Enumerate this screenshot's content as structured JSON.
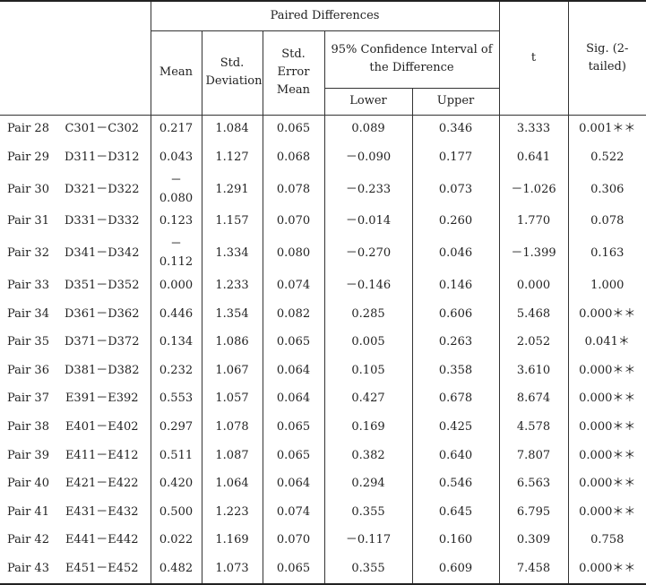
{
  "table": {
    "header": {
      "paired_differences": "Paired Differences",
      "mean": "Mean",
      "std_deviation": "Std. Deviation",
      "std_error_mean": "Std. Error Mean",
      "confidence_interval": "95% Confidence Interval of the Difference",
      "lower": "Lower",
      "upper": "Upper",
      "t": "t",
      "sig": "Sig. (2-tailed)"
    },
    "rows": [
      [
        "Pair 28",
        "C301－C302",
        "0.217",
        "1.084",
        "0.065",
        "0.089",
        "0.346",
        "3.333",
        "0.001＊＊"
      ],
      [
        "Pair 29",
        "D311－D312",
        "0.043",
        "1.127",
        "0.068",
        "－0.090",
        "0.177",
        "0.641",
        "0.522"
      ],
      [
        "Pair 30",
        "D321－D322",
        "－0.080",
        "1.291",
        "0.078",
        "－0.233",
        "0.073",
        "－1.026",
        "0.306"
      ],
      [
        "Pair 31",
        "D331－D332",
        "0.123",
        "1.157",
        "0.070",
        "－0.014",
        "0.260",
        "1.770",
        "0.078"
      ],
      [
        "Pair 32",
        "D341－D342",
        "－0.112",
        "1.334",
        "0.080",
        "－0.270",
        "0.046",
        "－1.399",
        "0.163"
      ],
      [
        "Pair 33",
        "D351－D352",
        "0.000",
        "1.233",
        "0.074",
        "－0.146",
        "0.146",
        "0.000",
        "1.000"
      ],
      [
        "Pair 34",
        "D361－D362",
        "0.446",
        "1.354",
        "0.082",
        "0.285",
        "0.606",
        "5.468",
        "0.000＊＊"
      ],
      [
        "Pair 35",
        "D371－D372",
        "0.134",
        "1.086",
        "0.065",
        "0.005",
        "0.263",
        "2.052",
        "0.041＊"
      ],
      [
        "Pair 36",
        "D381－D382",
        "0.232",
        "1.067",
        "0.064",
        "0.105",
        "0.358",
        "3.610",
        "0.000＊＊"
      ],
      [
        "Pair 37",
        "E391－E392",
        "0.553",
        "1.057",
        "0.064",
        "0.427",
        "0.678",
        "8.674",
        "0.000＊＊"
      ],
      [
        "Pair 38",
        "E401－E402",
        "0.297",
        "1.078",
        "0.065",
        "0.169",
        "0.425",
        "4.578",
        "0.000＊＊"
      ],
      [
        "Pair 39",
        "E411－E412",
        "0.511",
        "1.087",
        "0.065",
        "0.382",
        "0.640",
        "7.807",
        "0.000＊＊"
      ],
      [
        "Pair 40",
        "E421－E422",
        "0.420",
        "1.064",
        "0.064",
        "0.294",
        "0.546",
        "6.563",
        "0.000＊＊"
      ],
      [
        "Pair 41",
        "E431－E432",
        "0.500",
        "1.223",
        "0.074",
        "0.355",
        "0.645",
        "6.795",
        "0.000＊＊"
      ],
      [
        "Pair 42",
        "E441－E442",
        "0.022",
        "1.169",
        "0.070",
        "－0.117",
        "0.160",
        "0.309",
        "0.758"
      ],
      [
        "Pair 43",
        "E451－E452",
        "0.482",
        "1.073",
        "0.065",
        "0.355",
        "0.609",
        "7.458",
        "0.000＊＊"
      ]
    ]
  }
}
